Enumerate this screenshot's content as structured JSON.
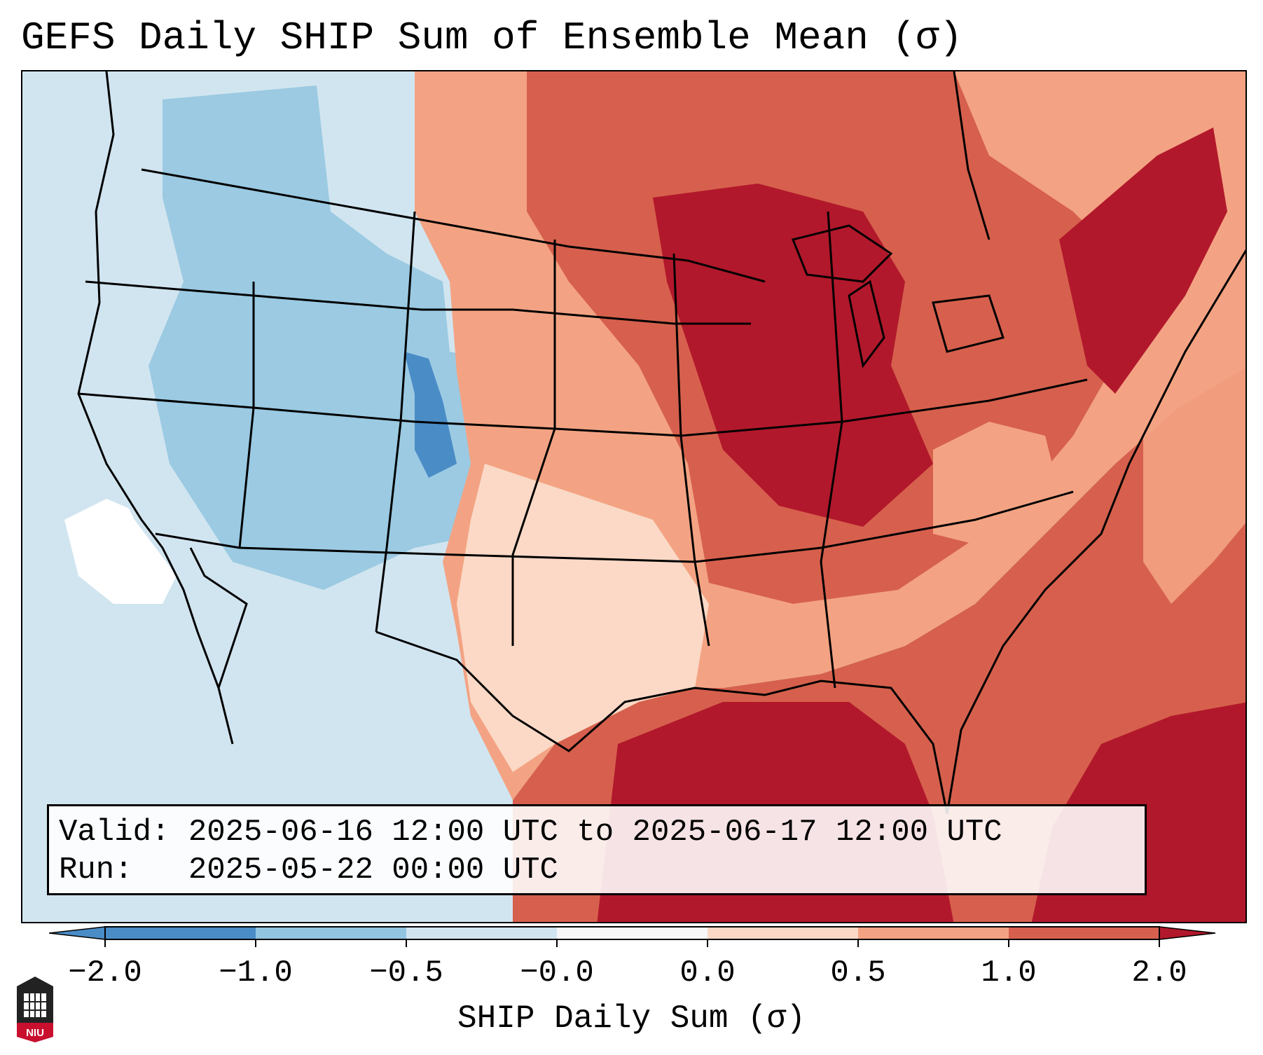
{
  "title": "GEFS Daily SHIP Sum of Ensemble Mean (σ)",
  "info": {
    "valid_label": "Valid:",
    "valid_value": "2025-06-16 12:00 UTC to 2025-06-17 12:00 UTC",
    "run_label": "Run:",
    "run_value": "2025-05-22 00:00 UTC"
  },
  "colorbar": {
    "label": "SHIP Daily Sum (σ)",
    "ticks": [
      "−2.0",
      "−1.0",
      "−0.5",
      "−0.0",
      "0.0",
      "0.5",
      "1.0",
      "2.0"
    ],
    "colors": {
      "below_-1.0": "#4a8cc6",
      "-1.0_to_-0.5": "#92c5df",
      "-0.5_to_0.0": "#d1e5f0",
      "near_zero": "#f7f7f7",
      "0.0_to_0.5": "#fbd9c6",
      "0.5_to_1.0": "#f3a383",
      "1.0_to_2.0": "#d6604d",
      "above_2.0": "#b2182b"
    }
  },
  "logo": {
    "text": "NIU"
  }
}
